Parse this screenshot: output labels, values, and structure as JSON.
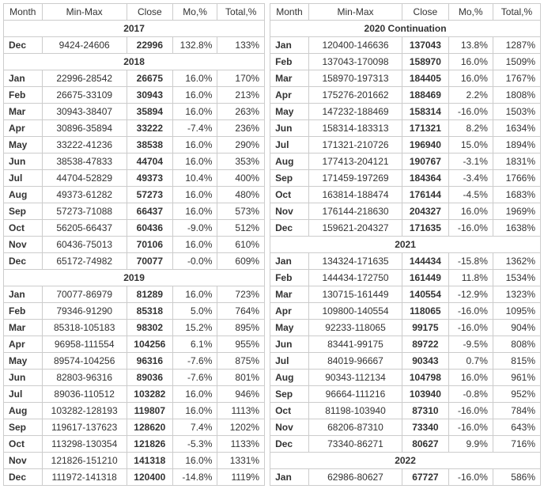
{
  "headers": {
    "month": "Month",
    "minmax": "Min-Max",
    "close": "Close",
    "mo": "Mo,%",
    "total": "Total,%"
  },
  "leftSections": [
    {
      "year": "2017",
      "rows": [
        {
          "m": "Dec",
          "mm": "9424-24606",
          "c": "22996",
          "mo": "132.8%",
          "t": "133%"
        }
      ]
    },
    {
      "year": "2018",
      "rows": [
        {
          "m": "Jan",
          "mm": "22996-28542",
          "c": "26675",
          "mo": "16.0%",
          "t": "170%"
        },
        {
          "m": "Feb",
          "mm": "26675-33109",
          "c": "30943",
          "mo": "16.0%",
          "t": "213%"
        },
        {
          "m": "Mar",
          "mm": "30943-38407",
          "c": "35894",
          "mo": "16.0%",
          "t": "263%"
        },
        {
          "m": "Apr",
          "mm": "30896-35894",
          "c": "33222",
          "mo": "-7.4%",
          "t": "236%"
        },
        {
          "m": "May",
          "mm": "33222-41236",
          "c": "38538",
          "mo": "16.0%",
          "t": "290%"
        },
        {
          "m": "Jun",
          "mm": "38538-47833",
          "c": "44704",
          "mo": "16.0%",
          "t": "353%"
        },
        {
          "m": "Jul",
          "mm": "44704-52829",
          "c": "49373",
          "mo": "10.4%",
          "t": "400%"
        },
        {
          "m": "Aug",
          "mm": "49373-61282",
          "c": "57273",
          "mo": "16.0%",
          "t": "480%"
        },
        {
          "m": "Sep",
          "mm": "57273-71088",
          "c": "66437",
          "mo": "16.0%",
          "t": "573%"
        },
        {
          "m": "Oct",
          "mm": "56205-66437",
          "c": "60436",
          "mo": "-9.0%",
          "t": "512%"
        },
        {
          "m": "Nov",
          "mm": "60436-75013",
          "c": "70106",
          "mo": "16.0%",
          "t": "610%"
        },
        {
          "m": "Dec",
          "mm": "65172-74982",
          "c": "70077",
          "mo": "-0.0%",
          "t": "609%"
        }
      ]
    },
    {
      "year": "2019",
      "rows": [
        {
          "m": "Jan",
          "mm": "70077-86979",
          "c": "81289",
          "mo": "16.0%",
          "t": "723%"
        },
        {
          "m": "Feb",
          "mm": "79346-91290",
          "c": "85318",
          "mo": "5.0%",
          "t": "764%"
        },
        {
          "m": "Mar",
          "mm": "85318-105183",
          "c": "98302",
          "mo": "15.2%",
          "t": "895%"
        },
        {
          "m": "Apr",
          "mm": "96958-111554",
          "c": "104256",
          "mo": "6.1%",
          "t": "955%"
        },
        {
          "m": "May",
          "mm": "89574-104256",
          "c": "96316",
          "mo": "-7.6%",
          "t": "875%"
        },
        {
          "m": "Jun",
          "mm": "82803-96316",
          "c": "89036",
          "mo": "-7.6%",
          "t": "801%"
        },
        {
          "m": "Jul",
          "mm": "89036-110512",
          "c": "103282",
          "mo": "16.0%",
          "t": "946%"
        },
        {
          "m": "Aug",
          "mm": "103282-128193",
          "c": "119807",
          "mo": "16.0%",
          "t": "1113%"
        },
        {
          "m": "Sep",
          "mm": "119617-137623",
          "c": "128620",
          "mo": "7.4%",
          "t": "1202%"
        },
        {
          "m": "Oct",
          "mm": "113298-130354",
          "c": "121826",
          "mo": "-5.3%",
          "t": "1133%"
        },
        {
          "m": "Nov",
          "mm": "121826-151210",
          "c": "141318",
          "mo": "16.0%",
          "t": "1331%"
        },
        {
          "m": "Dec",
          "mm": "111972-141318",
          "c": "120400",
          "mo": "-14.8%",
          "t": "1119%"
        }
      ]
    }
  ],
  "rightSections": [
    {
      "year": "2020 Continuation",
      "rows": [
        {
          "m": "Jan",
          "mm": "120400-146636",
          "c": "137043",
          "mo": "13.8%",
          "t": "1287%"
        },
        {
          "m": "Feb",
          "mm": "137043-170098",
          "c": "158970",
          "mo": "16.0%",
          "t": "1509%"
        },
        {
          "m": "Mar",
          "mm": "158970-197313",
          "c": "184405",
          "mo": "16.0%",
          "t": "1767%"
        },
        {
          "m": "Apr",
          "mm": "175276-201662",
          "c": "188469",
          "mo": "2.2%",
          "t": "1808%"
        },
        {
          "m": "May",
          "mm": "147232-188469",
          "c": "158314",
          "mo": "-16.0%",
          "t": "1503%"
        },
        {
          "m": "Jun",
          "mm": "158314-183313",
          "c": "171321",
          "mo": "8.2%",
          "t": "1634%"
        },
        {
          "m": "Jul",
          "mm": "171321-210726",
          "c": "196940",
          "mo": "15.0%",
          "t": "1894%"
        },
        {
          "m": "Aug",
          "mm": "177413-204121",
          "c": "190767",
          "mo": "-3.1%",
          "t": "1831%"
        },
        {
          "m": "Sep",
          "mm": "171459-197269",
          "c": "184364",
          "mo": "-3.4%",
          "t": "1766%"
        },
        {
          "m": "Oct",
          "mm": "163814-188474",
          "c": "176144",
          "mo": "-4.5%",
          "t": "1683%"
        },
        {
          "m": "Nov",
          "mm": "176144-218630",
          "c": "204327",
          "mo": "16.0%",
          "t": "1969%"
        },
        {
          "m": "Dec",
          "mm": "159621-204327",
          "c": "171635",
          "mo": "-16.0%",
          "t": "1638%"
        }
      ]
    },
    {
      "year": "2021",
      "rows": [
        {
          "m": "Jan",
          "mm": "134324-171635",
          "c": "144434",
          "mo": "-15.8%",
          "t": "1362%"
        },
        {
          "m": "Feb",
          "mm": "144434-172750",
          "c": "161449",
          "mo": "11.8%",
          "t": "1534%"
        },
        {
          "m": "Mar",
          "mm": "130715-161449",
          "c": "140554",
          "mo": "-12.9%",
          "t": "1323%"
        },
        {
          "m": "Apr",
          "mm": "109800-140554",
          "c": "118065",
          "mo": "-16.0%",
          "t": "1095%"
        },
        {
          "m": "May",
          "mm": "92233-118065",
          "c": "99175",
          "mo": "-16.0%",
          "t": "904%"
        },
        {
          "m": "Jun",
          "mm": "83441-99175",
          "c": "89722",
          "mo": "-9.5%",
          "t": "808%"
        },
        {
          "m": "Jul",
          "mm": "84019-96667",
          "c": "90343",
          "mo": "0.7%",
          "t": "815%"
        },
        {
          "m": "Aug",
          "mm": "90343-112134",
          "c": "104798",
          "mo": "16.0%",
          "t": "961%"
        },
        {
          "m": "Sep",
          "mm": "96664-111216",
          "c": "103940",
          "mo": "-0.8%",
          "t": "952%"
        },
        {
          "m": "Oct",
          "mm": "81198-103940",
          "c": "87310",
          "mo": "-16.0%",
          "t": "784%"
        },
        {
          "m": "Nov",
          "mm": "68206-87310",
          "c": "73340",
          "mo": "-16.0%",
          "t": "643%"
        },
        {
          "m": "Dec",
          "mm": "73340-86271",
          "c": "80627",
          "mo": "9.9%",
          "t": "716%"
        }
      ]
    },
    {
      "year": "2022",
      "rows": [
        {
          "m": "Jan",
          "mm": "62986-80627",
          "c": "67727",
          "mo": "-16.0%",
          "t": "586%"
        }
      ]
    }
  ]
}
